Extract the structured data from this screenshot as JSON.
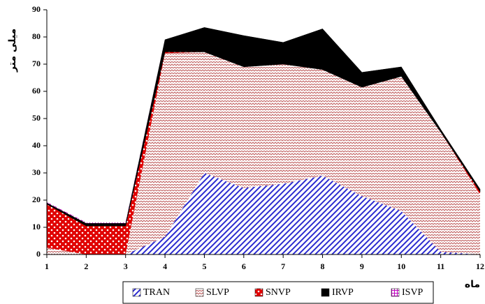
{
  "chart_data": {
    "type": "stacked-area",
    "y_label": "میلی متر",
    "x_label": "ماه",
    "x": [
      1,
      2,
      3,
      4,
      5,
      6,
      7,
      8,
      9,
      10,
      11,
      12
    ],
    "xlim": [
      1,
      12
    ],
    "xticks": [
      1,
      2,
      3,
      4,
      5,
      6,
      7,
      8,
      9,
      10,
      11,
      12
    ],
    "ylim": [
      0,
      90
    ],
    "yticks": [
      0,
      10,
      20,
      30,
      40,
      50,
      60,
      70,
      80,
      90
    ],
    "series": [
      {
        "name": "TRAN",
        "color": "#2a2ad0",
        "pattern": "diagonal",
        "values": [
          0,
          0,
          0,
          6.5,
          30,
          24.5,
          26,
          29,
          21.5,
          16,
          1,
          0
        ]
      },
      {
        "name": "SLVP",
        "color": "#c06060",
        "pattern": "wave",
        "values": [
          2.5,
          0,
          0,
          67.5,
          44.5,
          44.5,
          44,
          39,
          40,
          49.5,
          44,
          22
        ]
      },
      {
        "name": "SNVP",
        "color": "#e00000",
        "pattern": "dots",
        "values": [
          16,
          10.5,
          10.5,
          0.5,
          0,
          0,
          0,
          0,
          0,
          0,
          0,
          1
        ]
      },
      {
        "name": "IRVP",
        "color": "#000000",
        "pattern": "solid",
        "values": [
          0.5,
          1,
          1,
          4.5,
          9,
          11.5,
          8,
          15,
          5.5,
          3.5,
          1,
          1
        ]
      },
      {
        "name": "ISVP",
        "color": "#c000c0",
        "pattern": "grid",
        "values": [
          0.3,
          0.3,
          0.3,
          0,
          0,
          0,
          0,
          0,
          0,
          0,
          0,
          0
        ]
      }
    ]
  }
}
